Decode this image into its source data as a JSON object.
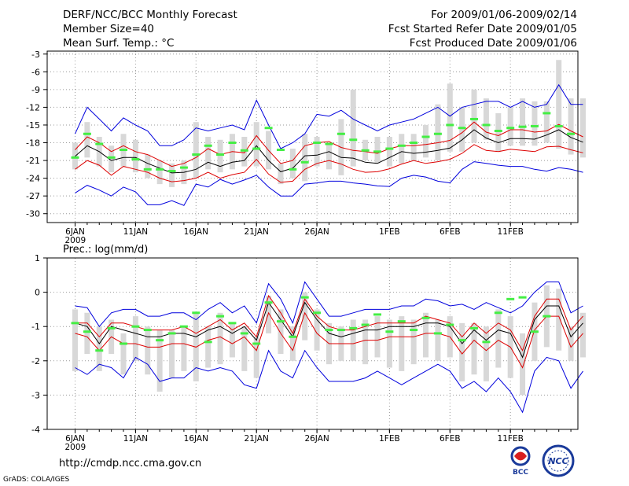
{
  "header": {
    "title": "DERF/NCC/BCC Monthly Forecast",
    "member": "Member Size=40",
    "variable": "Mean Surf. Temp.: °C",
    "period": "For 2009/01/06-2009/02/14",
    "start": "Fcst Started Refer Date 2009/01/05",
    "produced": "Fcst Produced Date 2009/01/06"
  },
  "footer": {
    "url": "http://cmdp.ncc.cma.gov.cn",
    "credit": "GrADS: COLA/IGES",
    "logo_bcc": "BCC",
    "logo_ncc": "NCC"
  },
  "colors": {
    "spread": "#0000dd",
    "band": "#dd0000",
    "mean": "#000000",
    "obs": "#44ee44",
    "box": "#d8d8d8",
    "grid": "#999999"
  },
  "chart_data": [
    {
      "type": "line",
      "title": "Mean Surf. Temp.: °C",
      "ylim": [
        -31.5,
        -2.5
      ],
      "yticks": [
        -3,
        -6,
        -9,
        -12,
        -15,
        -18,
        -21,
        -24,
        -27,
        -30
      ],
      "xticks": [
        {
          "day": 0,
          "label": "6JAN",
          "sub": "2009"
        },
        {
          "day": 5,
          "label": "11JAN"
        },
        {
          "day": 10,
          "label": "16JAN"
        },
        {
          "day": 15,
          "label": "21JAN"
        },
        {
          "day": 20,
          "label": "26JAN"
        },
        {
          "day": 26,
          "label": "1FEB"
        },
        {
          "day": 31,
          "label": "6FEB"
        },
        {
          "day": 36,
          "label": "11FEB"
        }
      ],
      "days": 40,
      "series": [
        {
          "name": "ensemble-max",
          "values": [
            -16.5,
            -12,
            -14,
            -16,
            -13.8,
            -15,
            -16,
            -18.5,
            -18.5,
            -17.5,
            -15.5,
            -16,
            -15.5,
            -15,
            -15.8,
            -10.8,
            -15,
            -19,
            -18,
            -16.5,
            -13.2,
            -13.5,
            -12.5,
            -14,
            -15,
            -16,
            -15,
            -14.5,
            -14,
            -13,
            -12,
            -13.5,
            -12,
            -11.5,
            -11,
            -11,
            -12,
            -11,
            -12,
            -11.5,
            -8.2,
            -11.5,
            -11.5
          ]
        },
        {
          "name": "upper-band",
          "values": [
            -19.2,
            -17,
            -18,
            -19.5,
            -18.5,
            -19.5,
            -20,
            -21,
            -22,
            -21.5,
            -20.5,
            -19,
            -20,
            -19.5,
            -19.7,
            -16.8,
            -19.3,
            -21.5,
            -21,
            -18.5,
            -18,
            -17.8,
            -18.8,
            -19.3,
            -19.5,
            -19.8,
            -19,
            -18.5,
            -18.5,
            -18.3,
            -18,
            -17.6,
            -16.3,
            -14.5,
            -16.2,
            -16.8,
            -15.8,
            -15.8,
            -16.2,
            -16,
            -14.9,
            -16,
            -17
          ]
        },
        {
          "name": "ensemble-mean",
          "values": [
            -20.3,
            -18.5,
            -19.5,
            -21,
            -20.5,
            -20.5,
            -21.5,
            -22.3,
            -23.1,
            -23,
            -22.5,
            -21.3,
            -22,
            -21.3,
            -21,
            -18.5,
            -21,
            -22.9,
            -22.3,
            -20.2,
            -20.1,
            -19.5,
            -20.5,
            -20.6,
            -21.3,
            -21.5,
            -20.5,
            -19.5,
            -19.8,
            -19.6,
            -19.3,
            -18.9,
            -17.5,
            -15.8,
            -17.2,
            -18,
            -17.3,
            -17.3,
            -17.4,
            -16.7,
            -15.8,
            -17.1,
            -17.9
          ]
        },
        {
          "name": "lower-band",
          "values": [
            -22.5,
            -21,
            -21.8,
            -23.5,
            -22,
            -22.5,
            -23,
            -24,
            -24.6,
            -24.4,
            -24,
            -23,
            -24,
            -23.4,
            -23,
            -20.8,
            -23.3,
            -24.7,
            -24.5,
            -22.5,
            -21.5,
            -21,
            -21.6,
            -22.5,
            -23,
            -22.9,
            -22.4,
            -21.6,
            -21,
            -21.5,
            -21.2,
            -20.8,
            -19.8,
            -18.3,
            -19.3,
            -19.5,
            -19.1,
            -19.3,
            -19.5,
            -18.7,
            -18.6,
            -19.2,
            -19.7
          ]
        },
        {
          "name": "ensemble-min",
          "values": [
            -26.5,
            -25.2,
            -26,
            -27,
            -25.5,
            -26.3,
            -28.5,
            -28.5,
            -27.8,
            -28.6,
            -25,
            -25.5,
            -24.2,
            -25,
            -24.3,
            -23.5,
            -25.5,
            -27,
            -27,
            -25,
            -24.8,
            -24.5,
            -24.5,
            -24.8,
            -25,
            -25.3,
            -25.4,
            -24,
            -23.5,
            -23.8,
            -24.5,
            -24.8,
            -22.5,
            -21.2,
            -21.5,
            -21.8,
            -22,
            -22,
            -22.5,
            -22.8,
            -22.2,
            -22.5,
            -23
          ]
        },
        {
          "name": "observed",
          "values": [
            -20.5,
            -16.5,
            -18.2,
            -20.5,
            -19.2,
            -20.8,
            -22.5,
            -22.5,
            -22.8,
            -22.2,
            -20,
            -18.5,
            -20,
            -18,
            -19.3,
            -19,
            -15.5,
            -19.2,
            -22.5,
            -21.3,
            -18,
            -18.2,
            -16.5,
            -17.5,
            -19.3,
            -19.5,
            -19,
            -18.5,
            -18,
            -17,
            -16.5,
            -15,
            -15.5,
            -14,
            -15,
            -16,
            -15.5,
            -15.3,
            -15.2,
            -13,
            -15.2,
            -16.5
          ]
        }
      ],
      "boxes": [
        [
          -22.5,
          -18
        ],
        [
          -20.5,
          -14.5
        ],
        [
          -22,
          -17
        ],
        [
          -23,
          -18.5
        ],
        [
          -22,
          -16.5
        ],
        [
          -23,
          -17.5
        ],
        [
          -24,
          -20
        ],
        [
          -25,
          -21
        ],
        [
          -25.5,
          -21.5
        ],
        [
          -25,
          -21
        ],
        [
          -24,
          -14.5
        ],
        [
          -22.5,
          -17
        ],
        [
          -23,
          -17.5
        ],
        [
          -22.5,
          -16.5
        ],
        [
          -22,
          -17
        ],
        [
          -22,
          -14.5
        ],
        [
          -22.5,
          -16
        ],
        [
          -25,
          -21.5
        ],
        [
          -24,
          -19
        ],
        [
          -24.5,
          -16.5
        ],
        [
          -22,
          -17
        ],
        [
          -22.5,
          -18
        ],
        [
          -23.5,
          -14
        ],
        [
          -22,
          -9
        ],
        [
          -21,
          -17.5
        ],
        [
          -21.5,
          -17
        ],
        [
          -22,
          -17
        ],
        [
          -21.5,
          -16.5
        ],
        [
          -21,
          -16.5
        ],
        [
          -20.5,
          -15
        ],
        [
          -21,
          -11.5
        ],
        [
          -19.5,
          -8
        ],
        [
          -19.5,
          -12
        ],
        [
          -18,
          -9
        ],
        [
          -17.5,
          -10.5
        ],
        [
          -19.5,
          -13
        ],
        [
          -18.5,
          -12
        ],
        [
          -18.5,
          -10.5
        ],
        [
          -18.5,
          -11
        ],
        [
          -18,
          -11
        ],
        [
          -19,
          -4
        ],
        [
          -20,
          -10.5
        ],
        [
          -20.5,
          -10.5
        ]
      ]
    },
    {
      "type": "line",
      "title": "Prec.: log(mm/d)",
      "ylim": [
        -4,
        1
      ],
      "yticks": [
        1,
        0,
        -1,
        -2,
        -3,
        -4
      ],
      "xticks": [
        {
          "day": 0,
          "label": "6JAN",
          "sub": "2009"
        },
        {
          "day": 5,
          "label": "11JAN"
        },
        {
          "day": 10,
          "label": "16JAN"
        },
        {
          "day": 15,
          "label": "21JAN"
        },
        {
          "day": 20,
          "label": "26JAN"
        },
        {
          "day": 26,
          "label": "1FEB"
        },
        {
          "day": 31,
          "label": "6FEB"
        },
        {
          "day": 36,
          "label": "11FEB"
        }
      ],
      "days": 40,
      "series": [
        {
          "name": "ensemble-max",
          "values": [
            -0.4,
            -0.45,
            -1.0,
            -0.6,
            -0.5,
            -0.5,
            -0.7,
            -0.7,
            -0.6,
            -0.6,
            -0.8,
            -0.5,
            -0.3,
            -0.6,
            -0.4,
            -0.9,
            0.25,
            -0.2,
            -0.9,
            0.3,
            -0.2,
            -0.7,
            -0.7,
            -0.6,
            -0.5,
            -0.5,
            -0.5,
            -0.4,
            -0.4,
            -0.2,
            -0.25,
            -0.4,
            -0.35,
            -0.5,
            -0.3,
            -0.45,
            -0.6,
            -0.4,
            0.0,
            0.3,
            0.3,
            -0.6,
            -0.4
          ]
        },
        {
          "name": "upper-band",
          "values": [
            -0.9,
            -0.9,
            -1.3,
            -0.9,
            -0.9,
            -1.0,
            -1.1,
            -1.1,
            -1.1,
            -1.0,
            -1.2,
            -1.0,
            -0.8,
            -1.1,
            -0.9,
            -1.3,
            -0.1,
            -0.6,
            -1.2,
            -0.2,
            -0.7,
            -1.0,
            -1.1,
            -1.1,
            -1.0,
            -0.9,
            -0.9,
            -0.9,
            -0.9,
            -0.7,
            -0.8,
            -0.9,
            -1.3,
            -0.9,
            -1.2,
            -0.9,
            -1.1,
            -1.7,
            -0.7,
            -0.2,
            -0.2,
            -1.1,
            -0.7
          ]
        },
        {
          "name": "ensemble-mean",
          "values": [
            -0.9,
            -1.0,
            -1.5,
            -1.0,
            -1.1,
            -1.2,
            -1.3,
            -1.3,
            -1.2,
            -1.2,
            -1.3,
            -1.1,
            -1.0,
            -1.2,
            -1.0,
            -1.4,
            -0.3,
            -0.8,
            -1.3,
            -0.3,
            -0.8,
            -1.2,
            -1.3,
            -1.2,
            -1.1,
            -1.1,
            -1.0,
            -1.0,
            -1.0,
            -0.9,
            -0.9,
            -1.0,
            -1.5,
            -1.1,
            -1.4,
            -1.1,
            -1.2,
            -1.9,
            -0.8,
            -0.4,
            -0.4,
            -1.3,
            -0.9
          ]
        },
        {
          "name": "lower-band",
          "values": [
            -1.2,
            -1.3,
            -1.7,
            -1.3,
            -1.5,
            -1.5,
            -1.6,
            -1.6,
            -1.5,
            -1.5,
            -1.6,
            -1.4,
            -1.3,
            -1.5,
            -1.3,
            -1.7,
            -0.6,
            -1.2,
            -1.7,
            -0.6,
            -1.2,
            -1.5,
            -1.5,
            -1.5,
            -1.4,
            -1.4,
            -1.3,
            -1.3,
            -1.3,
            -1.2,
            -1.2,
            -1.3,
            -1.8,
            -1.4,
            -1.7,
            -1.4,
            -1.6,
            -2.2,
            -1.1,
            -0.7,
            -0.7,
            -1.6,
            -1.2
          ]
        },
        {
          "name": "ensemble-min",
          "values": [
            -2.2,
            -2.4,
            -2.1,
            -2.2,
            -2.5,
            -1.9,
            -2.1,
            -2.6,
            -2.5,
            -2.5,
            -2.2,
            -2.3,
            -2.2,
            -2.3,
            -2.7,
            -2.8,
            -1.7,
            -2.3,
            -2.5,
            -1.7,
            -2.2,
            -2.6,
            -2.6,
            -2.6,
            -2.5,
            -2.3,
            -2.5,
            -2.7,
            -2.5,
            -2.3,
            -2.1,
            -2.3,
            -2.8,
            -2.6,
            -2.9,
            -2.5,
            -2.9,
            -3.5,
            -2.3,
            -1.9,
            -2.0,
            -2.8,
            -2.3
          ]
        },
        {
          "name": "observed",
          "values": [
            -0.9,
            -1.15,
            -1.7,
            -1.05,
            -1.5,
            -1.0,
            -1.1,
            -1.4,
            -1.2,
            -1.0,
            -0.6,
            -1.45,
            -0.7,
            -0.9,
            -1.2,
            -1.5,
            -0.3,
            -0.85,
            -1.3,
            -0.15,
            -0.6,
            -1.1,
            -1.1,
            -1.05,
            -0.95,
            -0.65,
            -1.15,
            -0.85,
            -1.1,
            -0.75,
            -1.2,
            -0.95,
            -1.4,
            -1.05,
            -1.45,
            -0.6,
            -0.2,
            -0.15,
            -1.15,
            -0.7
          ]
        }
      ],
      "boxes": [
        [
          -2.3,
          -0.5
        ],
        [
          -1.8,
          -0.6
        ],
        [
          -2.3,
          -1.0
        ],
        [
          -1.8,
          -0.8
        ],
        [
          -2.4,
          -1.2
        ],
        [
          -2.0,
          -0.7
        ],
        [
          -2.4,
          -1.0
        ],
        [
          -2.9,
          -1.1
        ],
        [
          -2.5,
          -1.1
        ],
        [
          -2.3,
          -1.0
        ],
        [
          -2.6,
          -0.6
        ],
        [
          -2.2,
          -1.0
        ],
        [
          -2.1,
          -0.6
        ],
        [
          -1.9,
          -0.9
        ],
        [
          -2.3,
          -1.0
        ],
        [
          -2.5,
          -1.3
        ],
        [
          -1.2,
          -0.1
        ],
        [
          -1.8,
          -0.5
        ],
        [
          -2.0,
          -1.0
        ],
        [
          -1.4,
          0.0
        ],
        [
          -1.7,
          -0.5
        ],
        [
          -2.1,
          -0.9
        ],
        [
          -2.0,
          -1.0
        ],
        [
          -2.0,
          -0.8
        ],
        [
          -2.1,
          -0.8
        ],
        [
          -1.9,
          -0.7
        ],
        [
          -2.2,
          -0.8
        ],
        [
          -2.3,
          -0.7
        ],
        [
          -2.1,
          -0.8
        ],
        [
          -1.9,
          -0.6
        ],
        [
          -2.0,
          -0.8
        ],
        [
          -1.9,
          -0.7
        ],
        [
          -2.6,
          -0.9
        ],
        [
          -2.4,
          -0.9
        ],
        [
          -2.6,
          -1.0
        ],
        [
          -2.2,
          -0.5
        ],
        [
          -2.5,
          -0.7
        ],
        [
          -3.0,
          -1.2
        ],
        [
          -2.0,
          -0.3
        ],
        [
          -1.6,
          0.2
        ],
        [
          -1.7,
          0.1
        ],
        [
          -2.0,
          -1.0
        ],
        [
          -1.9,
          -0.6
        ]
      ]
    }
  ]
}
